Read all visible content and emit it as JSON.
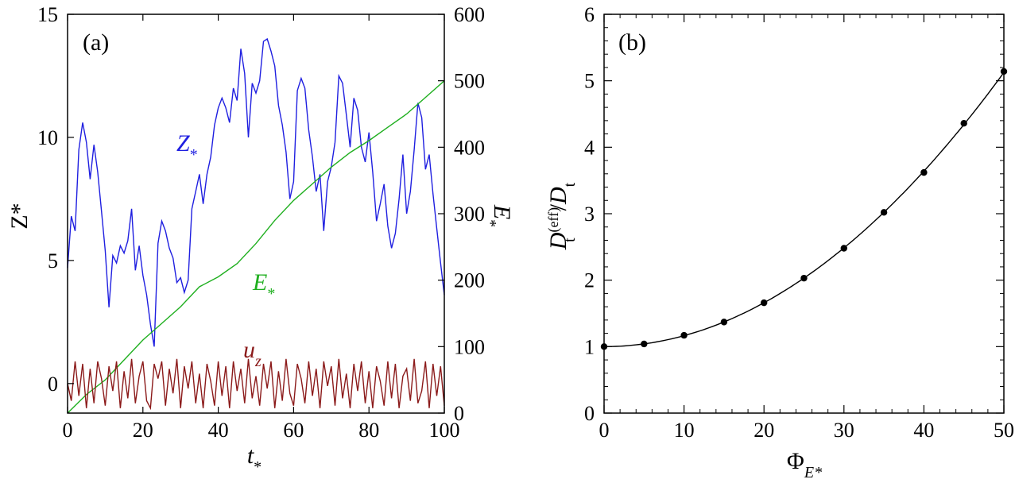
{
  "chart_data": [
    {
      "type": "line",
      "panel_label": "(a)",
      "xlabel": "t",
      "xlabel_sub": "*",
      "ylabel_left": "Z*",
      "ylabel_right": "E",
      "ylabel_right_sub": "*",
      "xlim": [
        0,
        100
      ],
      "ylim_left": [
        -1.2,
        15
      ],
      "ylim_right": [
        0,
        600
      ],
      "x_ticks": [
        0,
        20,
        40,
        60,
        80,
        100
      ],
      "y_ticks_left": [
        0,
        5,
        10,
        15
      ],
      "y_ticks_right": [
        0,
        100,
        200,
        300,
        400,
        500,
        600
      ],
      "series": [
        {
          "name": "Z",
          "name_sub": "*",
          "axis": "left",
          "color": "#1f1fe0",
          "x": [
            0,
            1,
            2,
            3,
            4,
            5,
            6,
            7,
            8,
            9,
            10,
            11,
            12,
            13,
            14,
            15,
            16,
            17,
            18,
            19,
            20,
            21,
            22,
            23,
            24,
            25,
            26,
            27,
            28,
            29,
            30,
            31,
            32,
            33,
            34,
            35,
            36,
            37,
            38,
            39,
            40,
            41,
            42,
            43,
            44,
            45,
            46,
            47,
            48,
            49,
            50,
            51,
            52,
            53,
            54,
            55,
            56,
            57,
            58,
            59,
            60,
            61,
            62,
            63,
            64,
            65,
            66,
            67,
            68,
            69,
            70,
            71,
            72,
            73,
            74,
            75,
            76,
            77,
            78,
            79,
            80,
            81,
            82,
            83,
            84,
            85,
            86,
            87,
            88,
            89,
            90,
            91,
            92,
            93,
            94,
            95,
            96,
            97,
            98,
            99,
            100
          ],
          "values": [
            4.7,
            6.8,
            6.2,
            9.5,
            10.6,
            9.8,
            8.3,
            9.7,
            8.6,
            7.0,
            5.4,
            3.1,
            5.2,
            4.9,
            5.6,
            5.3,
            5.8,
            7.1,
            4.6,
            5.6,
            4.4,
            3.6,
            2.4,
            1.5,
            5.7,
            6.6,
            6.2,
            5.5,
            5.1,
            4.1,
            4.3,
            3.7,
            4.2,
            7.1,
            7.8,
            8.5,
            7.3,
            8.5,
            9.2,
            10.5,
            11.2,
            11.6,
            11.2,
            10.6,
            12.0,
            11.5,
            13.6,
            12.6,
            10.0,
            12.2,
            11.8,
            12.3,
            13.9,
            14.0,
            13.5,
            12.9,
            11.3,
            10.5,
            9.4,
            7.5,
            8.2,
            11.9,
            12.4,
            12.0,
            10.3,
            9.2,
            7.8,
            8.5,
            6.2,
            8.2,
            8.8,
            9.8,
            12.5,
            12.2,
            10.9,
            9.6,
            11.6,
            11.1,
            9.6,
            9.0,
            10.2,
            8.6,
            6.6,
            7.3,
            8.1,
            6.4,
            5.5,
            6.1,
            7.5,
            9.3,
            6.9,
            7.8,
            9.5,
            11.4,
            10.8,
            8.7,
            9.3,
            7.7,
            6.3,
            4.9,
            3.6
          ]
        },
        {
          "name": "E",
          "name_sub": "*",
          "axis": "right",
          "color": "#1faf1f",
          "x": [
            0,
            5,
            10,
            15,
            20,
            25,
            30,
            35,
            40,
            45,
            50,
            55,
            60,
            65,
            70,
            75,
            80,
            85,
            90,
            95,
            100
          ],
          "values": [
            0,
            28,
            50,
            80,
            110,
            135,
            160,
            190,
            205,
            225,
            255,
            290,
            320,
            345,
            370,
            392,
            410,
            430,
            450,
            475,
            500
          ]
        },
        {
          "name": "u",
          "name_sub": "z",
          "axis": "left",
          "color": "#8b1a1a",
          "x": [
            0,
            1,
            2,
            3,
            4,
            5,
            6,
            7,
            8,
            9,
            10,
            11,
            12,
            13,
            14,
            15,
            16,
            17,
            18,
            19,
            20,
            21,
            22,
            23,
            24,
            25,
            26,
            27,
            28,
            29,
            30,
            31,
            32,
            33,
            34,
            35,
            36,
            37,
            38,
            39,
            40,
            41,
            42,
            43,
            44,
            45,
            46,
            47,
            48,
            49,
            50,
            51,
            52,
            53,
            54,
            55,
            56,
            57,
            58,
            59,
            60,
            61,
            62,
            63,
            64,
            65,
            66,
            67,
            68,
            69,
            70,
            71,
            72,
            73,
            74,
            75,
            76,
            77,
            78,
            79,
            80,
            81,
            82,
            83,
            84,
            85,
            86,
            87,
            88,
            89,
            90,
            91,
            92,
            93,
            94,
            95,
            96,
            97,
            98,
            99,
            100
          ],
          "values": [
            0,
            -0.7,
            0.9,
            -0.5,
            0.8,
            -1.0,
            0.6,
            -0.8,
            0.9,
            0.2,
            -0.9,
            0.7,
            -0.3,
            0.9,
            -1.0,
            0.5,
            -0.6,
            1.0,
            -0.8,
            0.3,
            0.9,
            -0.7,
            -1.0,
            0.8,
            0.2,
            0.9,
            -0.9,
            0.6,
            -0.4,
            1.0,
            -1.0,
            0.7,
            -0.2,
            0.9,
            -0.8,
            0.4,
            -1.0,
            0.8,
            0.1,
            -0.9,
            0.9,
            -0.5,
            0.7,
            -1.0,
            0.9,
            -0.3,
            0.6,
            -0.8,
            1.0,
            -0.6,
            0.3,
            -0.9,
            0.8,
            -0.2,
            0.9,
            -1.0,
            0.5,
            -0.7,
            1.0,
            -0.4,
            -0.9,
            0.8,
            0.2,
            -0.8,
            0.9,
            -0.5,
            0.6,
            -1.0,
            0.9,
            -0.1,
            0.7,
            -0.9,
            1.0,
            -0.6,
            0.4,
            -1.0,
            0.8,
            -0.3,
            0.9,
            -0.8,
            0.5,
            -1.0,
            0.7,
            0.1,
            -0.9,
            0.9,
            -0.6,
            0.8,
            -1.0,
            0.3,
            0.6,
            -0.7,
            1.0,
            -0.8,
            -0.3,
            0.9,
            -1.0,
            0.8,
            -0.5,
            0.7,
            -0.9
          ]
        }
      ],
      "annotations": [
        {
          "text": "Z",
          "sub": "*",
          "color": "#1f1fe0"
        },
        {
          "text": "E",
          "sub": "*",
          "color": "#1faf1f"
        },
        {
          "text": "u",
          "sub": "z",
          "color": "#8b1a1a"
        }
      ]
    },
    {
      "type": "line",
      "panel_label": "(b)",
      "xlabel": "Φ",
      "xlabel_sub": "E*",
      "ylabel": "D",
      "ylabel_sup": "(eff)",
      "ylabel_sub": "t",
      "ylabel_slash": "/",
      "ylabel_den": "D",
      "ylabel_den_sub": "t",
      "xlim": [
        0,
        50
      ],
      "ylim": [
        0,
        6
      ],
      "x_ticks": [
        0,
        10,
        20,
        30,
        40,
        50
      ],
      "y_ticks": [
        0,
        1,
        2,
        3,
        4,
        5,
        6
      ],
      "series": [
        {
          "name": "points",
          "style": "markers",
          "color": "#000000",
          "x": [
            0,
            5,
            10,
            15,
            20,
            25,
            30,
            35,
            40,
            45,
            50
          ],
          "values": [
            1.0,
            1.04,
            1.17,
            1.37,
            1.66,
            2.03,
            2.48,
            3.02,
            3.62,
            4.36,
            5.14
          ]
        },
        {
          "name": "fit",
          "style": "line",
          "color": "#000000",
          "formula": "1 + 0.00165*x^2"
        }
      ]
    }
  ]
}
